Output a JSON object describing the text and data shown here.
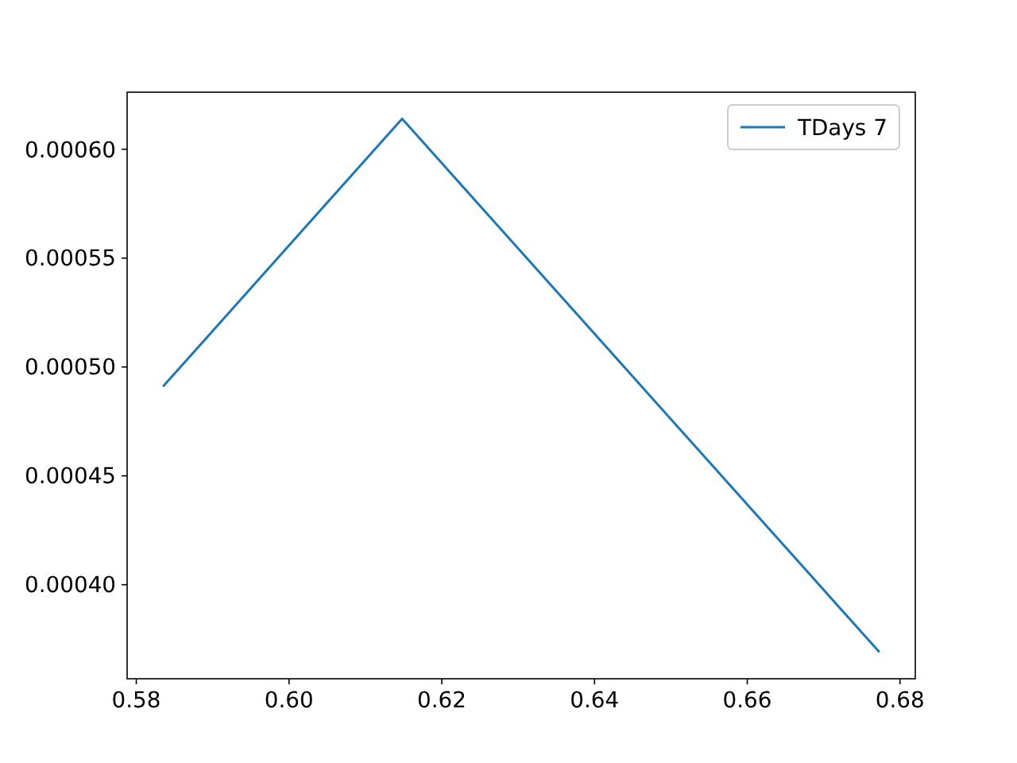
{
  "chart_data": {
    "type": "line",
    "x": [
      0.5835,
      0.6148,
      0.6773
    ],
    "series": [
      {
        "name": "TDays 7",
        "color": "#1f77b4",
        "values": [
          0.000491,
          0.000614,
          0.000369
        ]
      }
    ],
    "xlim": [
      0.5788,
      0.682
    ],
    "ylim": [
      0.0003568,
      0.0006262
    ],
    "xticks": [
      {
        "value": 0.58,
        "label": "0.58"
      },
      {
        "value": 0.6,
        "label": "0.60"
      },
      {
        "value": 0.62,
        "label": "0.62"
      },
      {
        "value": 0.64,
        "label": "0.64"
      },
      {
        "value": 0.66,
        "label": "0.66"
      },
      {
        "value": 0.68,
        "label": "0.68"
      }
    ],
    "yticks": [
      {
        "value": 0.0004,
        "label": "0.00040"
      },
      {
        "value": 0.00045,
        "label": "0.00045"
      },
      {
        "value": 0.0005,
        "label": "0.00050"
      },
      {
        "value": 0.00055,
        "label": "0.00055"
      },
      {
        "value": 0.0006,
        "label": "0.00060"
      }
    ],
    "legend": "top right",
    "grid": false,
    "line_style": "solid"
  }
}
